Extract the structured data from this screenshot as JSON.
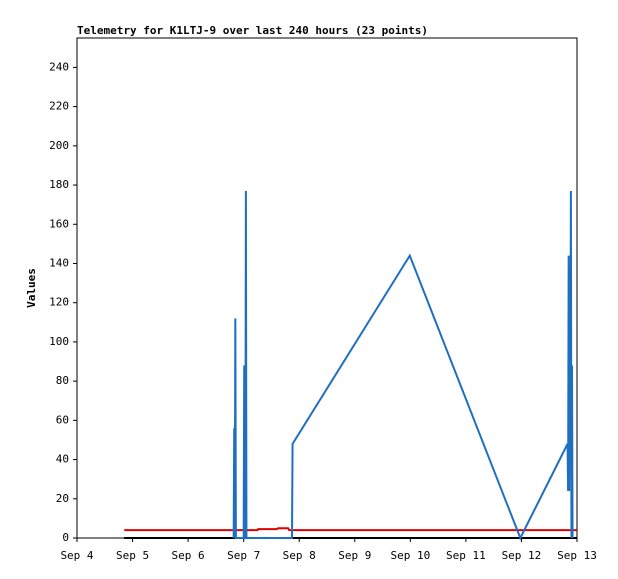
{
  "chart_data": {
    "type": "line",
    "title": "Telemetry for K1LTJ-9 over last 240 hours (23 points)",
    "y_label": "Values",
    "xlim": [
      0,
      9
    ],
    "xticks": [
      {
        "value": 0,
        "label": "Sep 4"
      },
      {
        "value": 1,
        "label": "Sep 5"
      },
      {
        "value": 2,
        "label": "Sep 6"
      },
      {
        "value": 3,
        "label": "Sep 7"
      },
      {
        "value": 4,
        "label": "Sep 8"
      },
      {
        "value": 5,
        "label": "Sep 9"
      },
      {
        "value": 6,
        "label": "Sep 10"
      },
      {
        "value": 7,
        "label": "Sep 11"
      },
      {
        "value": 8,
        "label": "Sep 12"
      },
      {
        "value": 9,
        "label": "Sep 13"
      }
    ],
    "ylim": [
      0,
      255
    ],
    "yticks": [
      0,
      20,
      40,
      60,
      80,
      100,
      120,
      140,
      160,
      180,
      200,
      220,
      240
    ],
    "series": [
      {
        "color": "#000000",
        "x": [
          0.85,
          9
        ],
        "values": [
          0,
          0
        ]
      },
      {
        "color": "#dd0000",
        "x": [
          0.85,
          3.25,
          3.26,
          3.6,
          3.62,
          3.8,
          3.82,
          9
        ],
        "values": [
          4,
          4,
          4.5,
          4.5,
          5,
          5,
          4,
          4
        ]
      },
      {
        "color": "#1f6fc0",
        "x": [
          2.82,
          2.83,
          2.84,
          2.85,
          2.86,
          3.0,
          3.01,
          3.02,
          3.03,
          3.04,
          3.05,
          3.87,
          3.88,
          5.99,
          7.98,
          8.83,
          8.84,
          8.85,
          8.86,
          8.87,
          8.88,
          8.89,
          8.9,
          8.91,
          8.92
        ],
        "values": [
          0,
          56,
          0,
          112,
          0,
          0,
          88,
          0,
          0,
          177,
          0,
          0,
          48,
          144,
          0,
          48,
          24,
          144,
          24,
          108,
          48,
          177,
          0,
          88,
          0
        ]
      }
    ]
  }
}
